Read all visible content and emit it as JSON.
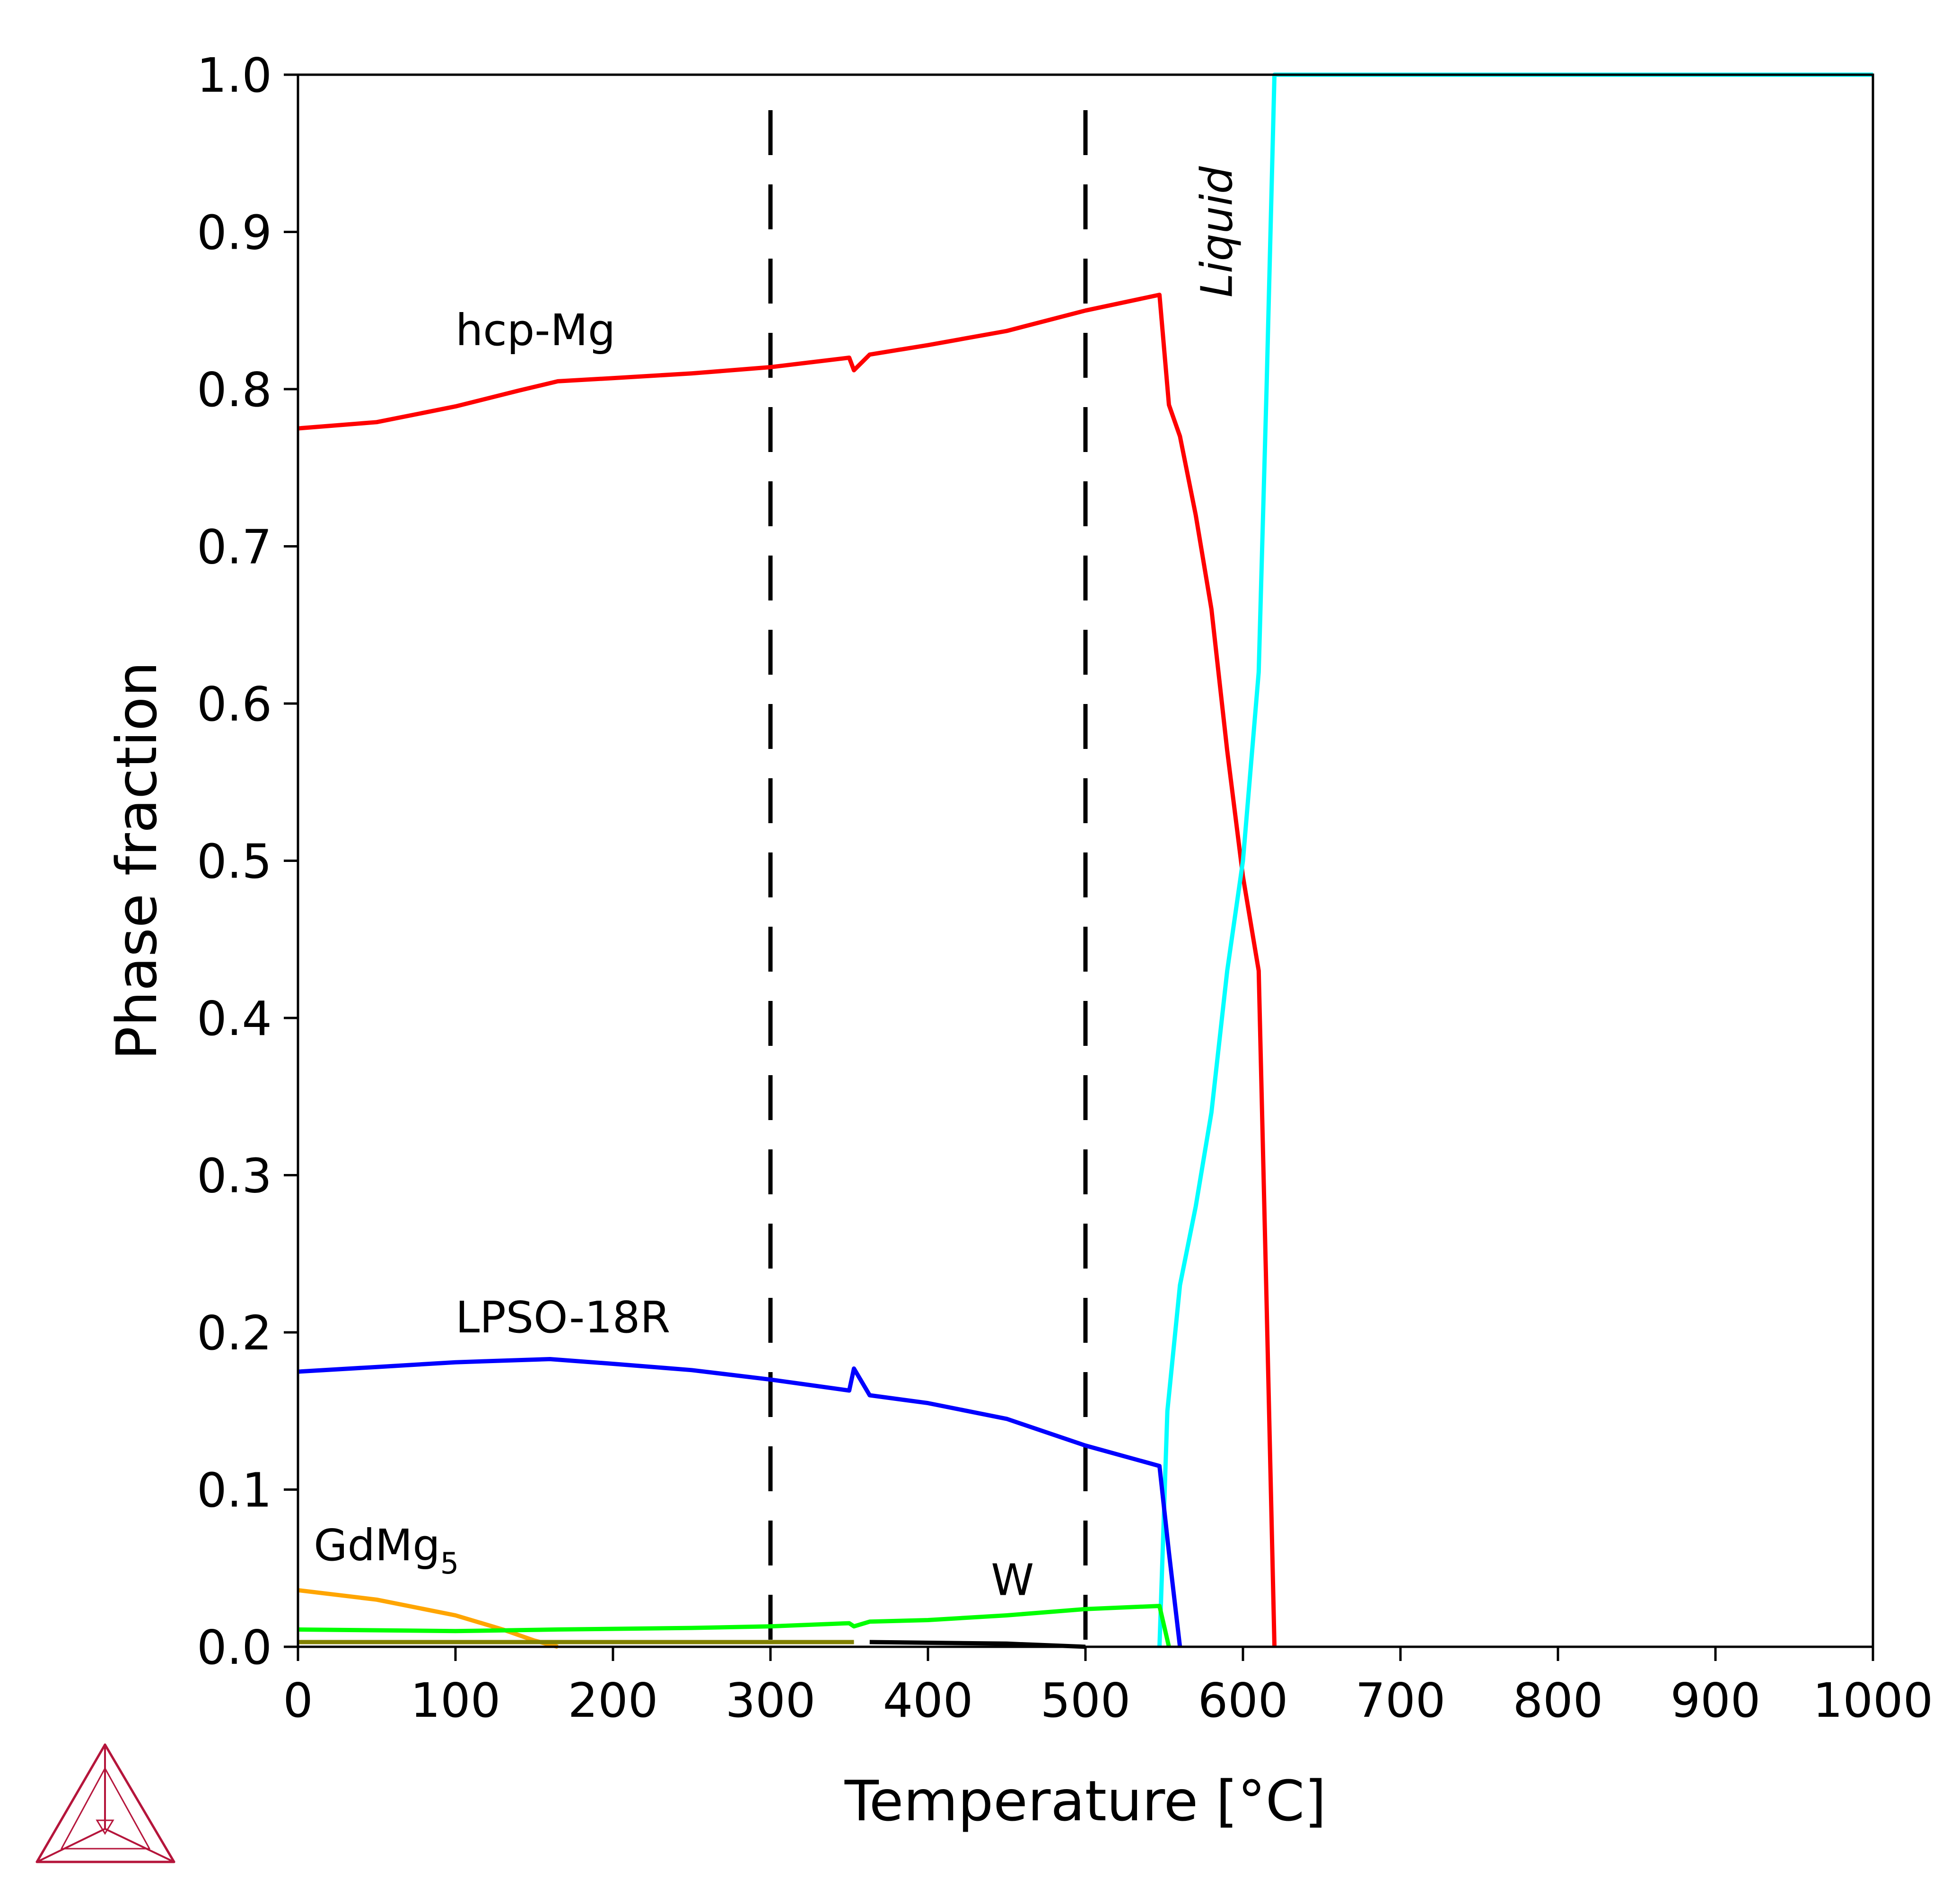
{
  "chart_data": {
    "type": "line",
    "title": "",
    "xlabel": "Temperature [°C]",
    "ylabel": "Phase fraction",
    "xlim": [
      0,
      1000
    ],
    "ylim": [
      0,
      1.0
    ],
    "x_ticks": [
      0,
      100,
      200,
      300,
      400,
      500,
      600,
      700,
      800,
      900,
      1000
    ],
    "y_ticks": [
      0.0,
      0.1,
      0.2,
      0.3,
      0.4,
      0.5,
      0.6,
      0.7,
      0.8,
      0.9,
      1.0
    ],
    "x_tick_labels": [
      "0",
      "100",
      "200",
      "300",
      "400",
      "500",
      "600",
      "700",
      "800",
      "900",
      "1000"
    ],
    "y_tick_labels": [
      "0.0",
      "0.1",
      "0.2",
      "0.3",
      "0.4",
      "0.5",
      "0.6",
      "0.7",
      "0.8",
      "0.9",
      "1.0"
    ],
    "grid": false,
    "reference_lines": [
      {
        "x": 300,
        "style": "dashed",
        "color": "#000000"
      },
      {
        "x": 500,
        "style": "dashed",
        "color": "#000000"
      }
    ],
    "series": [
      {
        "name": "hcp-Mg",
        "color": "#ff0000",
        "points": [
          [
            0,
            0.775
          ],
          [
            50,
            0.779
          ],
          [
            100,
            0.789
          ],
          [
            140,
            0.799
          ],
          [
            165,
            0.805
          ],
          [
            200,
            0.807
          ],
          [
            250,
            0.81
          ],
          [
            300,
            0.814
          ],
          [
            350,
            0.82
          ],
          [
            353,
            0.812
          ],
          [
            363,
            0.822
          ],
          [
            400,
            0.828
          ],
          [
            450,
            0.837
          ],
          [
            500,
            0.85
          ],
          [
            547,
            0.86
          ],
          [
            553,
            0.79
          ],
          [
            560,
            0.77
          ],
          [
            570,
            0.72
          ],
          [
            580,
            0.66
          ],
          [
            590,
            0.57
          ],
          [
            600,
            0.49
          ],
          [
            610,
            0.43
          ],
          [
            615,
            0.22
          ],
          [
            620,
            0.0
          ]
        ]
      },
      {
        "name": "Liquid",
        "color": "#00ffff",
        "points": [
          [
            547,
            0.0
          ],
          [
            552,
            0.15
          ],
          [
            560,
            0.23
          ],
          [
            570,
            0.28
          ],
          [
            580,
            0.34
          ],
          [
            590,
            0.43
          ],
          [
            600,
            0.5
          ],
          [
            610,
            0.62
          ],
          [
            615,
            0.8
          ],
          [
            620,
            1.0
          ],
          [
            1000,
            1.0
          ]
        ]
      },
      {
        "name": "LPSO-18R",
        "color": "#0000ff",
        "points": [
          [
            0,
            0.175
          ],
          [
            50,
            0.178
          ],
          [
            100,
            0.181
          ],
          [
            160,
            0.183
          ],
          [
            200,
            0.18
          ],
          [
            250,
            0.176
          ],
          [
            300,
            0.17
          ],
          [
            350,
            0.163
          ],
          [
            353,
            0.177
          ],
          [
            363,
            0.16
          ],
          [
            400,
            0.155
          ],
          [
            450,
            0.145
          ],
          [
            500,
            0.128
          ],
          [
            547,
            0.115
          ],
          [
            553,
            0.06
          ],
          [
            560,
            0.0
          ]
        ]
      },
      {
        "name": "GdMg",
        "color": "#ffa500",
        "points": [
          [
            0,
            0.036
          ],
          [
            50,
            0.03
          ],
          [
            100,
            0.02
          ],
          [
            130,
            0.011
          ],
          [
            150,
            0.004
          ],
          [
            165,
            0.0
          ]
        ]
      },
      {
        "name": "W",
        "color": "#00ff00",
        "points": [
          [
            0,
            0.011
          ],
          [
            100,
            0.01
          ],
          [
            165,
            0.011
          ],
          [
            250,
            0.012
          ],
          [
            300,
            0.013
          ],
          [
            350,
            0.015
          ],
          [
            353,
            0.013
          ],
          [
            363,
            0.016
          ],
          [
            400,
            0.017
          ],
          [
            450,
            0.02
          ],
          [
            500,
            0.024
          ],
          [
            547,
            0.026
          ],
          [
            553,
            0.0
          ]
        ]
      },
      {
        "color": "#808000",
        "points": [
          [
            0,
            0.003
          ],
          [
            353,
            0.003
          ]
        ]
      },
      {
        "color": "#000000",
        "points": [
          [
            363,
            0.003
          ],
          [
            450,
            0.002
          ],
          [
            500,
            0.0
          ]
        ]
      }
    ],
    "labels": [
      {
        "text": "hcp-Mg",
        "x": 100,
        "y": 0.828
      },
      {
        "text": "LPSO-18R",
        "x": 100,
        "y": 0.2
      },
      {
        "text": "GdMg",
        "sub": "5",
        "x": 10,
        "y": 0.055
      },
      {
        "text": "W",
        "x": 440,
        "y": 0.033
      },
      {
        "text": "Liquid",
        "x": 593,
        "y": 0.9,
        "rotate": -90,
        "italic": true
      }
    ],
    "logo_color": "#b5153b"
  }
}
